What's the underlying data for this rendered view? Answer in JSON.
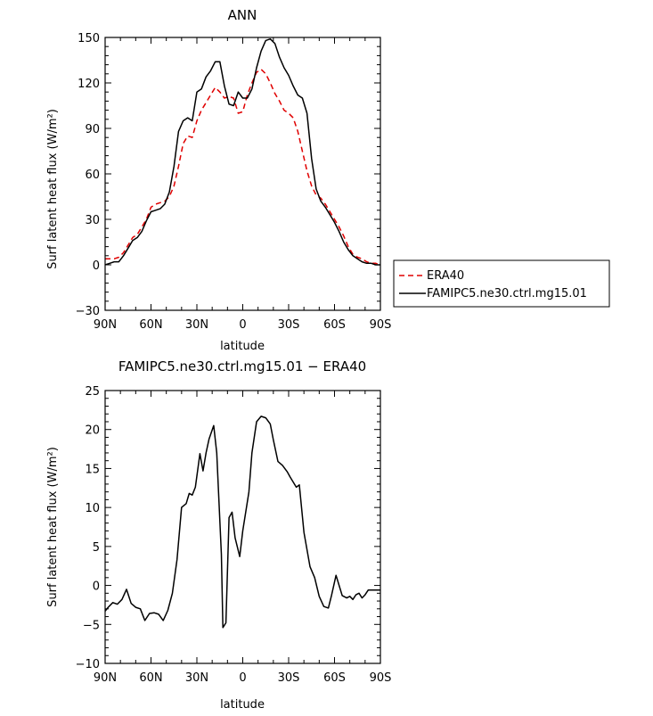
{
  "chart_data": [
    {
      "type": "line",
      "title": "ANN",
      "xlabel": "latitude",
      "ylabel": "Surf latent heat flux (W/m²)",
      "xlim": [
        90,
        -90
      ],
      "ylim": [
        -30,
        150
      ],
      "xticks": [
        90,
        60,
        30,
        0,
        -30,
        -60,
        -90
      ],
      "xtick_labels": [
        "90N",
        "60N",
        "30N",
        "0",
        "30S",
        "60S",
        "90S"
      ],
      "yticks": [
        -30,
        0,
        30,
        60,
        90,
        120,
        150
      ],
      "ytick_labels": [
        "−30",
        "0",
        "30",
        "60",
        "90",
        "120",
        "150"
      ],
      "grid": false,
      "legend": "outside right",
      "series": [
        {
          "name": "ERA40",
          "color": "#e00000",
          "style": "dashed",
          "x": [
            90,
            87,
            84,
            81,
            78,
            75,
            72,
            69,
            66,
            63,
            60,
            57,
            54,
            51,
            48,
            45,
            42,
            39,
            36,
            33,
            30,
            27,
            24,
            21,
            18,
            15,
            12,
            9,
            6,
            3,
            0,
            -3,
            -6,
            -9,
            -12,
            -15,
            -18,
            -21,
            -24,
            -27,
            -30,
            -33,
            -36,
            -39,
            -42,
            -45,
            -48,
            -51,
            -54,
            -57,
            -60,
            -63,
            -66,
            -69,
            -72,
            -75,
            -78,
            -81,
            -84,
            -87,
            -90
          ],
          "y": [
            4,
            4,
            4,
            5,
            8,
            13,
            18,
            20,
            25,
            30,
            38,
            40,
            41,
            42,
            45,
            52,
            65,
            80,
            85,
            84,
            95,
            102,
            107,
            112,
            117,
            114,
            110,
            111,
            110,
            100,
            101,
            112,
            120,
            127,
            129,
            126,
            120,
            113,
            108,
            102,
            100,
            97,
            88,
            75,
            62,
            52,
            46,
            44,
            40,
            35,
            30,
            25,
            19,
            12,
            7,
            5,
            4,
            2,
            1,
            1,
            0
          ]
        },
        {
          "name": "FAMIPC5.ne30.ctrl.mg15.01",
          "color": "#000000",
          "style": "solid",
          "x": [
            90,
            87,
            84,
            81,
            78,
            75,
            72,
            69,
            66,
            63,
            60,
            57,
            54,
            51,
            48,
            45,
            42,
            39,
            36,
            33,
            30,
            27,
            24,
            21,
            18,
            15,
            12,
            9,
            6,
            3,
            0,
            -3,
            -6,
            -9,
            -12,
            -15,
            -18,
            -21,
            -24,
            -27,
            -30,
            -33,
            -36,
            -39,
            -42,
            -45,
            -48,
            -51,
            -54,
            -57,
            -60,
            -63,
            -66,
            -69,
            -72,
            -75,
            -78,
            -81,
            -84,
            -87,
            -90
          ],
          "y": [
            0,
            1,
            2,
            2,
            6,
            11,
            16,
            18,
            22,
            29,
            35,
            36,
            37,
            40,
            48,
            65,
            88,
            95,
            97,
            95,
            114,
            116,
            124,
            128,
            134,
            134,
            118,
            106,
            105,
            114,
            110,
            110,
            116,
            130,
            141,
            148,
            149,
            146,
            137,
            130,
            125,
            118,
            112,
            110,
            100,
            70,
            50,
            42,
            38,
            33,
            28,
            22,
            15,
            10,
            6,
            4,
            2,
            1,
            1,
            0,
            0
          ]
        }
      ]
    },
    {
      "type": "line",
      "title": "FAMIPC5.ne30.ctrl.mg15.01 − ERA40",
      "xlabel": "latitude",
      "ylabel": "Surf latent heat flux (W/m²)",
      "xlim": [
        90,
        -90
      ],
      "ylim": [
        -10,
        25
      ],
      "xticks": [
        90,
        60,
        30,
        0,
        -30,
        -60,
        -90
      ],
      "xtick_labels": [
        "90N",
        "60N",
        "30N",
        "0",
        "30S",
        "60S",
        "90S"
      ],
      "yticks": [
        -10,
        -5,
        0,
        5,
        10,
        15,
        20,
        25
      ],
      "ytick_labels": [
        "−10",
        "−5",
        "0",
        "5",
        "10",
        "15",
        "20",
        "25"
      ],
      "grid": false,
      "series": [
        {
          "color": "#000000",
          "style": "solid",
          "x": [
            90,
            88,
            85,
            82,
            79,
            76,
            73,
            70,
            67,
            64,
            61,
            58,
            55,
            52,
            49,
            46,
            43,
            40,
            37,
            35,
            33,
            31,
            28,
            26,
            24,
            22,
            19,
            17,
            14,
            13,
            11,
            9,
            7,
            5,
            2,
            0,
            -4,
            -6,
            -9,
            -12,
            -15,
            -18,
            -20,
            -23,
            -26,
            -29,
            -31,
            -35,
            -37,
            -40,
            -44,
            -47,
            -50,
            -53,
            -56,
            -58,
            -61,
            -65,
            -68,
            -70,
            -72,
            -74,
            -76,
            -78,
            -80,
            -82,
            -84,
            -86,
            -88,
            -90
          ],
          "y": [
            -3.3,
            -2.8,
            -2.2,
            -2.4,
            -1.8,
            -0.5,
            -2.3,
            -2.8,
            -3.0,
            -4.5,
            -3.6,
            -3.5,
            -3.7,
            -4.5,
            -3.2,
            -1.0,
            3.3,
            10.0,
            10.5,
            11.8,
            11.6,
            12.6,
            16.9,
            14.7,
            17.0,
            18.8,
            20.5,
            17.0,
            4.0,
            -5.4,
            -4.8,
            8.7,
            9.4,
            6.1,
            3.7,
            7.0,
            12.0,
            17.0,
            21.0,
            21.7,
            21.5,
            20.7,
            18.7,
            15.9,
            15.4,
            14.6,
            13.9,
            12.6,
            12.9,
            6.8,
            2.4,
            1.0,
            -1.4,
            -2.7,
            -2.9,
            -1.3,
            1.3,
            -1.3,
            -1.6,
            -1.4,
            -1.8,
            -1.2,
            -1.0,
            -1.6,
            -1.2,
            -0.6,
            -0.6,
            -0.6,
            -0.6,
            -0.6
          ]
        }
      ]
    }
  ]
}
